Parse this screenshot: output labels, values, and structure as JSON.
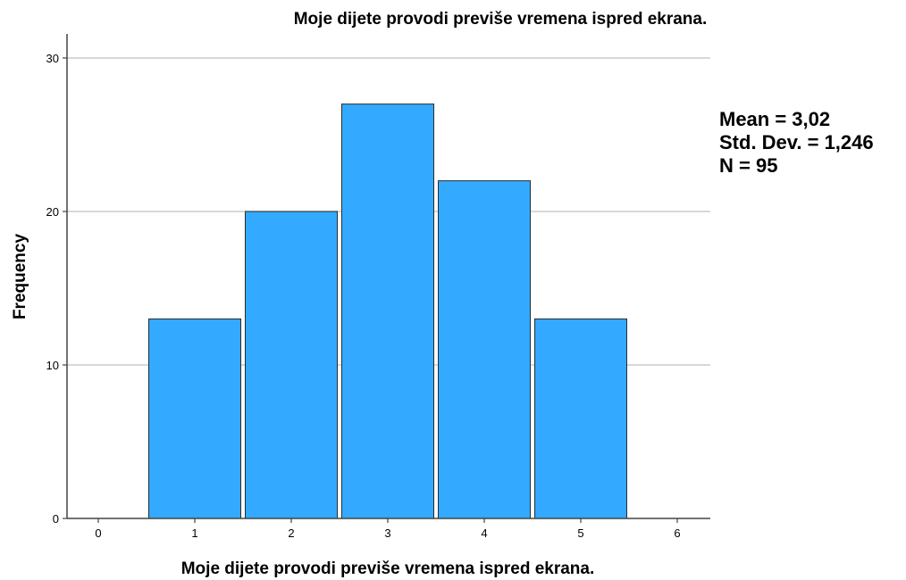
{
  "chart_data": {
    "type": "bar",
    "title": "Moje dijete provodi previše vremena ispred ekrana.",
    "xlabel": "Moje dijete provodi previše vremena ispred ekrana.",
    "ylabel": "Frequency",
    "categories": [
      "1",
      "2",
      "3",
      "4",
      "5"
    ],
    "values": [
      13,
      20,
      27,
      22,
      13
    ],
    "x_ticks": [
      "0",
      "1",
      "2",
      "3",
      "4",
      "5",
      "6"
    ],
    "y_ticks": [
      "0",
      "10",
      "20",
      "30"
    ],
    "xlim": [
      0,
      6
    ],
    "ylim": [
      0,
      31.5
    ],
    "grid": "horizontal",
    "bar_color": "#33aaff",
    "bar_edge_color": "#2b2b2b",
    "grid_color": "#cccccc"
  },
  "stats": {
    "mean": "Mean = 3,02",
    "std": "Std. Dev. = 1,246",
    "n": "N = 95"
  }
}
